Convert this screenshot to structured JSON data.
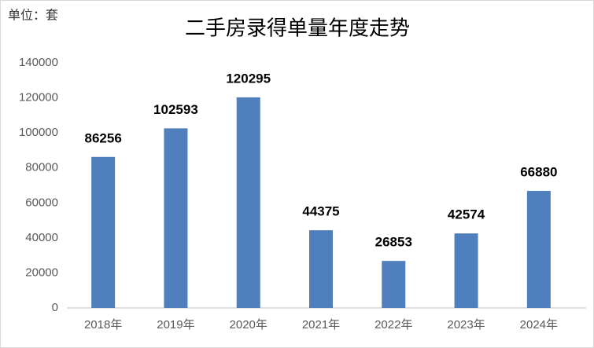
{
  "chart_data": {
    "type": "bar",
    "title": "二手房录得单量年度走势",
    "unit_label": "单位：套",
    "categories": [
      "2018年",
      "2019年",
      "2020年",
      "2021年",
      "2022年",
      "2023年",
      "2024年"
    ],
    "values": [
      86256,
      102593,
      120295,
      44375,
      26853,
      42574,
      66880
    ],
    "color": "#4f7fbc",
    "ylim": [
      0,
      140000
    ],
    "yticks": [
      0,
      20000,
      40000,
      60000,
      80000,
      100000,
      120000,
      140000
    ],
    "grid": false,
    "data_labels": true
  }
}
